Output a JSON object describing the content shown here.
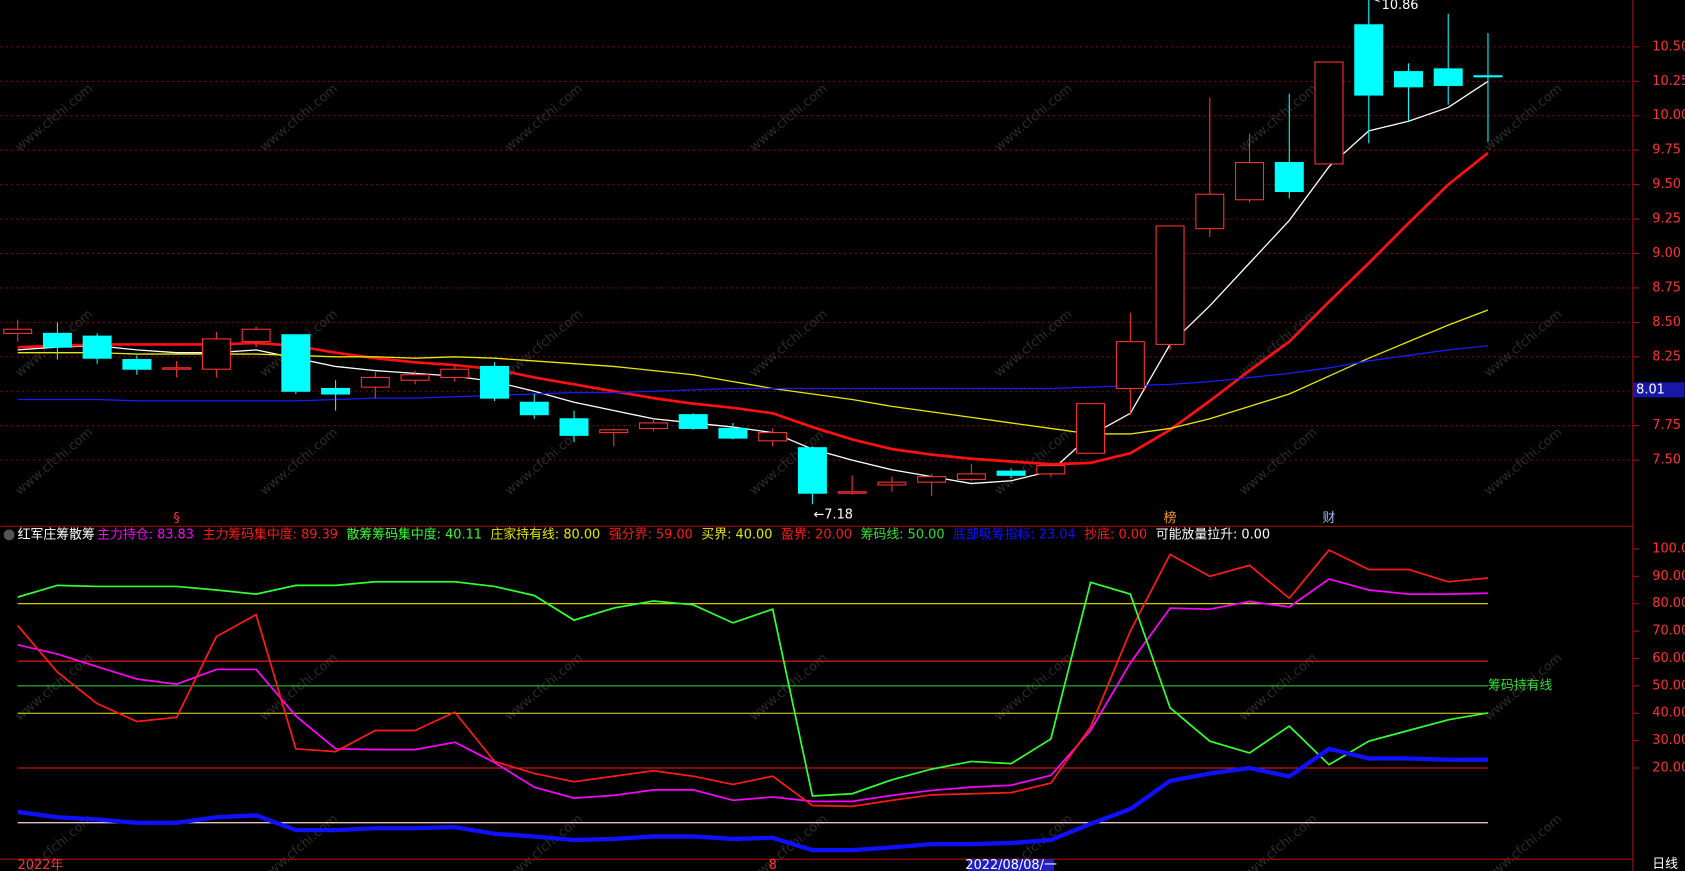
{
  "watermark": "www.cfchi.com",
  "chart_data": [
    {
      "type": "candlestick",
      "categories": [
        "2022年",
        null,
        null,
        null,
        null,
        null,
        null,
        null,
        null,
        null,
        null,
        null,
        null,
        null,
        null,
        null,
        null,
        null,
        null,
        "8",
        null,
        null,
        null,
        null,
        null,
        "2022/08/08/一",
        null,
        null,
        null,
        null,
        null,
        null,
        null,
        null,
        null,
        null,
        null,
        null
      ],
      "open": [
        8.42,
        8.42,
        8.4,
        8.23,
        8.16,
        8.16,
        8.36,
        8.41,
        8.02,
        8.03,
        8.08,
        8.1,
        8.18,
        7.92,
        7.8,
        7.7,
        7.73,
        7.83,
        7.73,
        7.64,
        7.59,
        7.26,
        7.32,
        7.34,
        7.36,
        7.42,
        7.4,
        7.55,
        8.02,
        8.34,
        9.18,
        9.39,
        9.66,
        9.65,
        10.66,
        10.32,
        10.34,
        10.29
      ],
      "high": [
        8.52,
        8.5,
        8.42,
        8.26,
        8.22,
        8.43,
        8.47,
        8.41,
        8.08,
        8.14,
        8.15,
        8.19,
        8.21,
        7.98,
        7.86,
        7.73,
        7.8,
        7.84,
        7.77,
        7.73,
        7.6,
        7.39,
        7.38,
        7.4,
        7.47,
        7.44,
        7.48,
        7.91,
        8.57,
        9.2,
        10.13,
        9.87,
        10.16,
        10.39,
        10.86,
        10.38,
        10.74,
        10.6
      ],
      "low": [
        8.36,
        8.23,
        8.2,
        8.12,
        8.1,
        8.1,
        8.32,
        7.98,
        7.86,
        7.95,
        8.05,
        8.07,
        7.93,
        7.8,
        7.63,
        7.6,
        7.71,
        7.72,
        7.65,
        7.6,
        7.18,
        7.25,
        7.27,
        7.24,
        7.35,
        7.37,
        7.38,
        7.55,
        7.83,
        8.3,
        9.12,
        9.37,
        9.4,
        9.65,
        9.8,
        9.96,
        10.08,
        9.81
      ],
      "close": [
        8.45,
        8.32,
        8.24,
        8.16,
        8.17,
        8.38,
        8.45,
        8.0,
        7.98,
        8.1,
        8.12,
        8.16,
        7.95,
        7.83,
        7.68,
        7.72,
        7.77,
        7.73,
        7.66,
        7.7,
        7.26,
        7.27,
        7.34,
        7.38,
        7.4,
        7.39,
        7.46,
        7.91,
        8.36,
        9.2,
        9.43,
        9.66,
        9.45,
        10.39,
        10.15,
        10.21,
        10.22,
        10.29
      ],
      "up_color": "#ff3232",
      "down_color": "#00ffff",
      "series": [
        {
          "color": "#ffffff",
          "values": [
            8.3,
            8.32,
            8.33,
            8.3,
            8.28,
            8.28,
            8.3,
            8.24,
            8.18,
            8.15,
            8.13,
            8.11,
            8.07,
            8.0,
            7.92,
            7.86,
            7.8,
            7.77,
            7.74,
            7.7,
            7.58,
            7.5,
            7.43,
            7.38,
            7.33,
            7.35,
            7.42,
            7.68,
            7.84,
            8.34,
            8.62,
            8.93,
            9.24,
            9.63,
            9.89,
            9.96,
            10.06,
            10.25
          ]
        },
        {
          "color": "#ff1010",
          "values": [
            8.32,
            8.33,
            8.34,
            8.34,
            8.34,
            8.34,
            8.35,
            8.33,
            8.28,
            8.24,
            8.21,
            8.19,
            8.16,
            8.1,
            8.05,
            8.0,
            7.95,
            7.91,
            7.88,
            7.84,
            7.74,
            7.65,
            7.58,
            7.54,
            7.51,
            7.49,
            7.47,
            7.48,
            7.55,
            7.72,
            7.93,
            8.15,
            8.36,
            8.65,
            8.93,
            9.22,
            9.5,
            9.73
          ]
        },
        {
          "color": "#e8e800",
          "values": [
            8.28,
            8.28,
            8.28,
            8.27,
            8.27,
            8.27,
            8.27,
            8.26,
            8.25,
            8.25,
            8.24,
            8.25,
            8.24,
            8.22,
            8.2,
            8.18,
            8.15,
            8.12,
            8.07,
            8.02,
            7.98,
            7.94,
            7.89,
            7.85,
            7.81,
            7.77,
            7.73,
            7.69,
            7.69,
            7.73,
            7.8,
            7.89,
            7.98,
            8.11,
            8.24,
            8.36,
            8.48,
            8.59
          ]
        },
        {
          "color": "#1a1aff",
          "values": [
            7.94,
            7.94,
            7.94,
            7.93,
            7.93,
            7.93,
            7.93,
            7.93,
            7.94,
            7.95,
            7.95,
            7.96,
            7.97,
            7.98,
            7.99,
            7.99,
            8.0,
            8.01,
            8.02,
            8.02,
            8.02,
            8.02,
            8.02,
            8.02,
            8.02,
            8.02,
            8.02,
            8.03,
            8.04,
            8.05,
            8.07,
            8.1,
            8.13,
            8.17,
            8.22,
            8.26,
            8.3,
            8.33
          ]
        }
      ],
      "ylim": [
        7.02,
        10.84
      ],
      "yticks": [
        {
          "value": 7.5,
          "label": "7.50"
        },
        {
          "value": 7.75,
          "label": "7.75"
        },
        {
          "value": 8.0,
          "label": "8.00"
        },
        {
          "value": 8.25,
          "label": "8.25"
        },
        {
          "value": 8.5,
          "label": "8.50"
        },
        {
          "value": 8.75,
          "label": "8.75"
        },
        {
          "value": 9.0,
          "label": "9.00"
        },
        {
          "value": 9.25,
          "label": "9.25"
        },
        {
          "value": 9.5,
          "label": "9.50"
        },
        {
          "value": 9.75,
          "label": "9.75"
        },
        {
          "value": 10.0,
          "label": "10.00"
        },
        {
          "value": 10.25,
          "label": "10.25"
        },
        {
          "value": 10.5,
          "label": "10.50"
        }
      ],
      "grid": true,
      "annotations": [
        {
          "index": 34,
          "value": 10.86,
          "label": "10.86"
        },
        {
          "index": 20,
          "value": 7.18,
          "label": "←7.18"
        }
      ],
      "signals": [
        null,
        null,
        null,
        null,
        {
          "label": "§",
          "color": "#ff3030"
        },
        null,
        null,
        null,
        null,
        null,
        null,
        null,
        null,
        null,
        null,
        null,
        null,
        null,
        null,
        null,
        null,
        null,
        null,
        null,
        null,
        null,
        null,
        null,
        null,
        {
          "label": "榜",
          "color": "#ff9a2e"
        },
        null,
        null,
        null,
        {
          "label": "财",
          "color": "#9fb8ff"
        },
        null,
        null,
        null,
        null
      ],
      "cursor_label": {
        "value": 8.01,
        "label": "8.01"
      },
      "period_label": "日线"
    },
    {
      "type": "line",
      "title": "红军庄筹散筹",
      "series": [
        {
          "name": "主力持仓: 83.83",
          "color": "#ff00ff",
          "values": [
            65,
            61.6,
            57,
            52.5,
            50.6,
            56,
            56,
            39,
            27,
            26.7,
            26.7,
            29.4,
            22,
            13,
            9,
            10,
            12,
            12,
            8.2,
            9.4,
            7.8,
            7.8,
            10,
            11.8,
            13,
            13.7,
            17.3,
            33.7,
            58.4,
            78.4,
            78,
            80.8,
            78.8,
            89,
            85,
            83.5,
            83.5,
            83.83
          ]
        },
        {
          "name": "主力筹码集中度: 89.39",
          "color": "#ff1a1a",
          "values": [
            72,
            55,
            43.5,
            37,
            38.5,
            68,
            76,
            27,
            26,
            33.7,
            33.7,
            40.4,
            22.4,
            18,
            15,
            17,
            19,
            17,
            14,
            17,
            6.3,
            6,
            8.2,
            10.2,
            10.6,
            11,
            14.5,
            35,
            70,
            98,
            90,
            94,
            82,
            99.6,
            92.5,
            92.5,
            88,
            89.39
          ]
        },
        {
          "name": "散筹筹码集中度: 40.11",
          "color": "#33ff33",
          "values": [
            82.4,
            86.7,
            86.3,
            86.3,
            86.3,
            85,
            83.5,
            86.7,
            86.7,
            88,
            88,
            88,
            86.3,
            83,
            74,
            78.4,
            81,
            79.6,
            73,
            78,
            9.8,
            10.6,
            15.7,
            19.6,
            22.4,
            21.6,
            30.6,
            87.8,
            83.5,
            42,
            29.8,
            25.5,
            35.3,
            21.2,
            29.8,
            33.7,
            37.6,
            40.11
          ]
        },
        {
          "name": "庄家持有线: 80.00",
          "color": "#e8e800",
          "level": 80
        },
        {
          "name": "强分界: 59.00",
          "color": "#ff1a1a",
          "level": 59
        },
        {
          "name": "买界: 40.00",
          "color": "#e8e800",
          "level": 40
        },
        {
          "name": "盈界: 20.00",
          "color": "#ff1a1a",
          "level": 20
        },
        {
          "name": "筹码线: 50.00",
          "color": "#33dd33",
          "level": 50
        },
        {
          "name": "底部吸筹指标: 23.04",
          "color": "#1010ff",
          "width": 4,
          "values": [
            4,
            2,
            1.2,
            0,
            0,
            2,
            2.7,
            -2.7,
            -2.7,
            -2,
            -2,
            -1.6,
            -4,
            -5,
            -6.3,
            -5.9,
            -5,
            -5,
            -5.9,
            -5.5,
            -10,
            -10,
            -9,
            -7.8,
            -7.8,
            -7.4,
            -6.3,
            -0.4,
            5,
            15.3,
            18,
            20,
            16.9,
            27,
            23.5,
            23.5,
            23,
            23.04
          ]
        },
        {
          "name": "抄底: 0.00",
          "color": "#ff1a1a",
          "level": 0
        },
        {
          "name": "可能放量拉升: 0.00",
          "color": "#ffffff",
          "level": 0
        }
      ],
      "level_note": {
        "label": "筹码持有线",
        "value": 50,
        "color": "#33dd33"
      },
      "ylim": [
        -13.3,
        107.5
      ],
      "yticks": [
        {
          "value": 20,
          "label": "20.00"
        },
        {
          "value": 30,
          "label": "30.00"
        },
        {
          "value": 40,
          "label": "40.00"
        },
        {
          "value": 50,
          "label": "50.00"
        },
        {
          "value": 60,
          "label": "60.00"
        },
        {
          "value": 70,
          "label": "70.00"
        },
        {
          "value": 80,
          "label": "80.00"
        },
        {
          "value": 90,
          "label": "90.00"
        },
        {
          "value": 100,
          "label": "100.0"
        }
      ]
    }
  ]
}
